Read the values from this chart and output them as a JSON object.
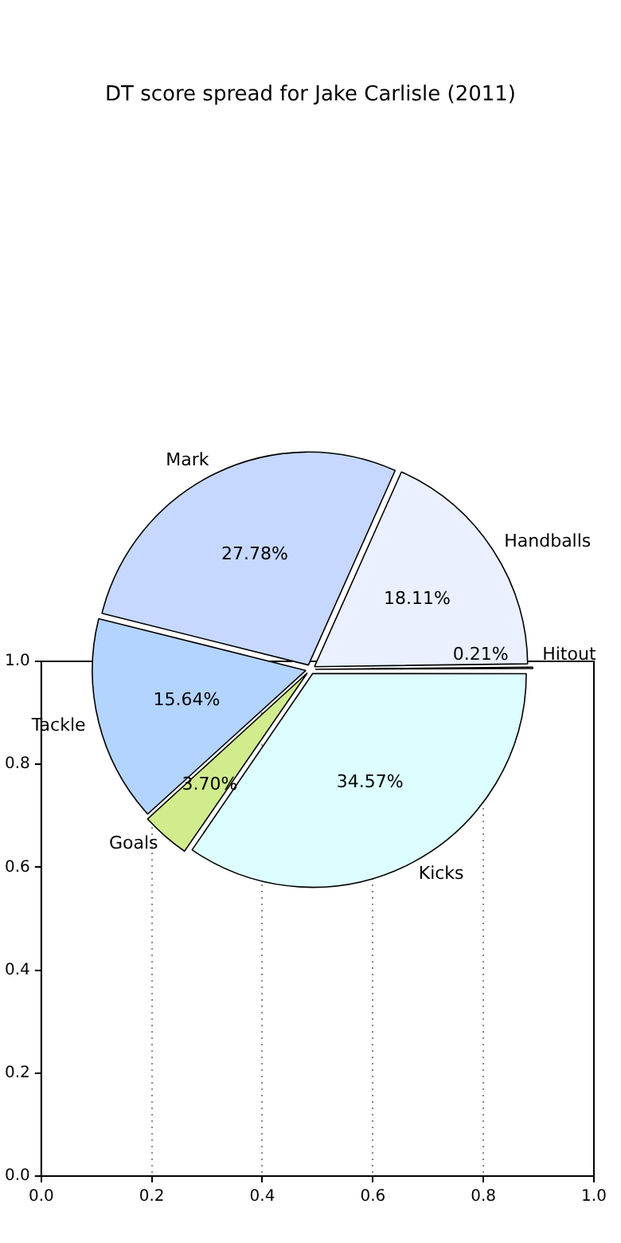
{
  "chart_data": [
    {
      "type": "pie",
      "title": "DT score spread for Jake Carlisle (2011)",
      "categories": [
        "Hitout",
        "Handballs",
        "Mark",
        "Tackle",
        "Goals",
        "Kicks"
      ],
      "values": [
        0.21,
        18.11,
        27.78,
        15.64,
        3.7,
        34.57
      ],
      "colors": [
        "#eeeeff",
        "#eaf0ff",
        "#c6d8ff",
        "#b3d4ff",
        "#d0ec8c",
        "#dcfeff"
      ],
      "value_labels": [
        "0.21%",
        "18.11%",
        "27.78%",
        "15.64%",
        "3.70%",
        "34.57%"
      ],
      "legend": false
    },
    {
      "type": "scatter",
      "xlim": [
        0,
        1
      ],
      "ylim": [
        0,
        1
      ],
      "xticks": [
        {
          "value": 0,
          "label": "0.0"
        },
        {
          "value": 0.2,
          "label": "0.2"
        },
        {
          "value": 0.4,
          "label": "0.4"
        },
        {
          "value": 0.6,
          "label": "0.6"
        },
        {
          "value": 0.8,
          "label": "0.8"
        },
        {
          "value": 1,
          "label": "1.0"
        }
      ],
      "yticks": [
        {
          "value": 0,
          "label": "0.0"
        },
        {
          "value": 0.2,
          "label": "0.2"
        },
        {
          "value": 0.4,
          "label": "0.4"
        },
        {
          "value": 0.6,
          "label": "0.6"
        },
        {
          "value": 0.8,
          "label": "0.8"
        },
        {
          "value": 1,
          "label": "1.0"
        }
      ],
      "grid": "x"
    }
  ]
}
